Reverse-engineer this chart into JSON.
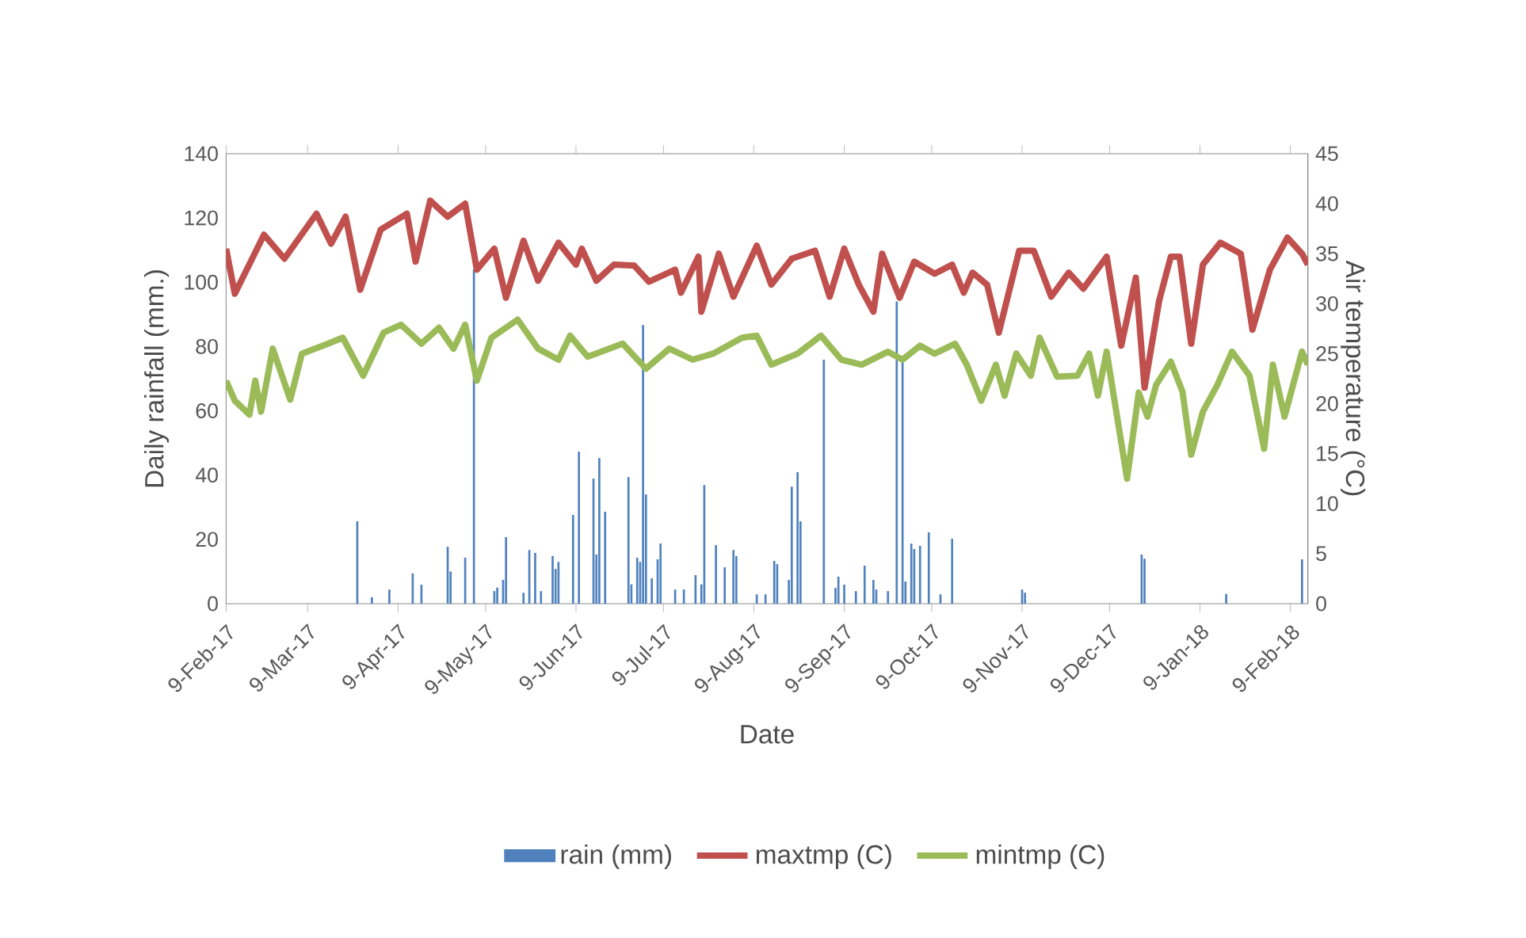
{
  "chart_data": {
    "type": "line",
    "xlabel": "Date",
    "ylabel": "Daily rainfall (mm.)",
    "y2label": "Air temperature (°C)",
    "xlim": [
      "2017-02-09",
      "2018-02-15"
    ],
    "xticks": [
      {
        "value": "2017-02-09",
        "label": "9-Feb-17"
      },
      {
        "value": "2017-03-09",
        "label": "9-Mar-17"
      },
      {
        "value": "2017-04-09",
        "label": "9-Apr-17"
      },
      {
        "value": "2017-05-09",
        "label": "9-May-17"
      },
      {
        "value": "2017-06-09",
        "label": "9-Jun-17"
      },
      {
        "value": "2017-07-09",
        "label": "9-Jul-17"
      },
      {
        "value": "2017-08-09",
        "label": "9-Aug-17"
      },
      {
        "value": "2017-09-09",
        "label": "9-Sep-17"
      },
      {
        "value": "2017-10-09",
        "label": "9-Oct-17"
      },
      {
        "value": "2017-11-09",
        "label": "9-Nov-17"
      },
      {
        "value": "2017-12-09",
        "label": "9-Dec-17"
      },
      {
        "value": "2018-01-09",
        "label": "9-Jan-18"
      },
      {
        "value": "2018-02-09",
        "label": "9-Feb-18"
      }
    ],
    "ylim": [
      0,
      140
    ],
    "yticks": [
      0,
      20,
      40,
      60,
      80,
      100,
      120,
      140
    ],
    "y2lim": [
      0,
      45
    ],
    "y2ticks": [
      0,
      5,
      10,
      15,
      20,
      25,
      30,
      35,
      40,
      45
    ],
    "legend": "bottom",
    "series": [
      {
        "name": "rain (mm)",
        "type": "bar",
        "axis": "y",
        "color": "#4f81bd",
        "x": [
          "2017-03-26",
          "2017-03-31",
          "2017-04-06",
          "2017-04-14",
          "2017-04-17",
          "2017-04-26",
          "2017-04-27",
          "2017-05-02",
          "2017-05-05",
          "2017-05-12",
          "2017-05-13",
          "2017-05-15",
          "2017-05-16",
          "2017-05-22",
          "2017-05-24",
          "2017-05-26",
          "2017-05-28",
          "2017-06-01",
          "2017-06-02",
          "2017-06-03",
          "2017-06-08",
          "2017-06-10",
          "2017-06-15",
          "2017-06-16",
          "2017-06-17",
          "2017-06-19",
          "2017-06-27",
          "2017-06-28",
          "2017-06-30",
          "2017-07-01",
          "2017-07-02",
          "2017-07-03",
          "2017-07-05",
          "2017-07-07",
          "2017-07-08",
          "2017-07-13",
          "2017-07-16",
          "2017-07-20",
          "2017-07-22",
          "2017-07-23",
          "2017-07-27",
          "2017-07-30",
          "2017-08-02",
          "2017-08-03",
          "2017-08-10",
          "2017-08-13",
          "2017-08-16",
          "2017-08-17",
          "2017-08-21",
          "2017-08-22",
          "2017-08-24",
          "2017-08-25",
          "2017-09-02",
          "2017-09-06",
          "2017-09-07",
          "2017-09-09",
          "2017-09-13",
          "2017-09-16",
          "2017-09-19",
          "2017-09-20",
          "2017-09-24",
          "2017-09-27",
          "2017-09-29",
          "2017-09-30",
          "2017-10-02",
          "2017-10-03",
          "2017-10-05",
          "2017-10-08",
          "2017-10-12",
          "2017-10-16",
          "2017-11-09",
          "2017-11-10",
          "2017-12-20",
          "2017-12-21",
          "2018-01-18",
          "2018-02-13"
        ],
        "values": [
          25.6,
          2,
          4.4,
          9.4,
          5.9,
          17.7,
          10,
          14.3,
          104,
          3.9,
          5,
          7.4,
          20.7,
          3.4,
          16.7,
          15.8,
          3.9,
          14.8,
          10.8,
          13,
          27.6,
          47.3,
          38.9,
          15.3,
          45.3,
          28.6,
          39.4,
          6,
          14.3,
          13,
          86.7,
          34,
          7.9,
          13.8,
          18.7,
          4.4,
          4.4,
          8.9,
          6,
          36.9,
          18.2,
          11.3,
          16.7,
          14.8,
          2.9,
          2.9,
          13.3,
          12.3,
          7.4,
          36.4,
          40.9,
          25.6,
          75.9,
          4.9,
          8.4,
          5.9,
          3.9,
          11.8,
          7.4,
          4.4,
          3.9,
          94,
          75.4,
          6.9,
          18.7,
          17,
          18,
          22.2,
          2.9,
          20.2,
          4.4,
          3.4,
          15.3,
          14,
          3,
          13.8
        ]
      },
      {
        "name": "maxtmp (C)",
        "axis": "y2",
        "color": "#c0504d",
        "x": [
          "2017-02-09",
          "2017-02-12",
          "2017-02-22",
          "2017-03-01",
          "2017-03-12",
          "2017-03-17",
          "2017-03-22",
          "2017-03-27",
          "2017-04-03",
          "2017-04-12",
          "2017-04-15",
          "2017-04-20",
          "2017-04-26",
          "2017-05-02",
          "2017-05-06",
          "2017-05-12",
          "2017-05-16",
          "2017-05-22",
          "2017-05-27",
          "2017-06-03",
          "2017-06-09",
          "2017-06-11",
          "2017-06-16",
          "2017-06-22",
          "2017-06-29",
          "2017-07-04",
          "2017-07-13",
          "2017-07-15",
          "2017-07-21",
          "2017-07-22",
          "2017-07-28",
          "2017-08-02",
          "2017-08-10",
          "2017-08-15",
          "2017-08-22",
          "2017-08-30",
          "2017-09-04",
          "2017-09-09",
          "2017-09-14",
          "2017-09-19",
          "2017-09-22",
          "2017-09-28",
          "2017-10-03",
          "2017-10-10",
          "2017-10-16",
          "2017-10-20",
          "2017-10-23",
          "2017-10-28",
          "2017-11-01",
          "2017-11-08",
          "2017-11-13",
          "2017-11-19",
          "2017-11-25",
          "2017-11-30",
          "2017-12-08",
          "2017-12-13",
          "2017-12-18",
          "2017-12-21",
          "2017-12-26",
          "2017-12-30",
          "2018-01-02",
          "2018-01-06",
          "2018-01-10",
          "2018-01-16",
          "2018-01-23",
          "2018-01-27",
          "2018-02-02",
          "2018-02-08",
          "2018-02-13",
          "2018-02-15"
        ],
        "values": [
          35.5,
          31,
          36.9,
          34.5,
          39,
          36,
          38.7,
          31.4,
          37.4,
          39,
          34.2,
          40.3,
          38.7,
          40,
          33.4,
          35.5,
          30.6,
          36.3,
          32.3,
          36.1,
          33.9,
          35.5,
          32.3,
          33.9,
          33.8,
          32.2,
          33.4,
          31.1,
          34.7,
          29.2,
          35,
          30.7,
          35.8,
          31.9,
          34.5,
          35.3,
          30.7,
          35.5,
          31.9,
          29.2,
          35,
          30.6,
          34.2,
          33,
          33.9,
          31.1,
          33.1,
          31.9,
          27.1,
          35.3,
          35.3,
          30.7,
          33.1,
          31.5,
          34.7,
          25.8,
          32.6,
          21.6,
          30.3,
          34.7,
          34.7,
          26,
          33.9,
          36.1,
          35,
          27.4,
          33.4,
          36.6,
          35,
          33.9
        ]
      },
      {
        "name": "mintmp (C)",
        "axis": "y2",
        "color": "#9bbb59",
        "x": [
          "2017-02-09",
          "2017-02-12",
          "2017-02-17",
          "2017-02-19",
          "2017-02-21",
          "2017-02-25",
          "2017-03-03",
          "2017-03-07",
          "2017-03-16",
          "2017-03-21",
          "2017-03-28",
          "2017-04-04",
          "2017-04-10",
          "2017-04-17",
          "2017-04-23",
          "2017-04-28",
          "2017-05-02",
          "2017-05-06",
          "2017-05-11",
          "2017-05-20",
          "2017-05-27",
          "2017-06-03",
          "2017-06-07",
          "2017-06-13",
          "2017-06-25",
          "2017-07-03",
          "2017-07-11",
          "2017-07-19",
          "2017-07-26",
          "2017-08-05",
          "2017-08-10",
          "2017-08-15",
          "2017-08-24",
          "2017-09-01",
          "2017-09-08",
          "2017-09-15",
          "2017-09-24",
          "2017-09-29",
          "2017-10-05",
          "2017-10-10",
          "2017-10-17",
          "2017-10-21",
          "2017-10-26",
          "2017-10-31",
          "2017-11-03",
          "2017-11-07",
          "2017-11-12",
          "2017-11-15",
          "2017-11-21",
          "2017-11-28",
          "2017-12-02",
          "2017-12-05",
          "2017-12-08",
          "2017-12-15",
          "2017-12-19",
          "2017-12-22",
          "2017-12-25",
          "2017-12-30",
          "2018-01-03",
          "2018-01-06",
          "2018-01-10",
          "2018-01-15",
          "2018-01-20",
          "2018-01-26",
          "2018-01-31",
          "2018-02-03",
          "2018-02-07",
          "2018-02-13",
          "2018-02-15"
        ],
        "values": [
          22.3,
          20.3,
          18.9,
          22.3,
          19.2,
          25.5,
          20.4,
          25,
          26,
          26.6,
          22.8,
          27.1,
          27.9,
          26,
          27.6,
          25.5,
          27.9,
          22.3,
          26.6,
          28.4,
          25.5,
          24.4,
          26.8,
          24.7,
          26,
          23.5,
          25.5,
          24.4,
          25,
          26.6,
          26.8,
          23.9,
          25,
          26.8,
          24.4,
          23.9,
          25.2,
          24.4,
          25.8,
          25,
          26,
          23.9,
          20.3,
          23.9,
          20.8,
          25,
          22.8,
          26.6,
          22.7,
          22.8,
          25,
          20.8,
          25.2,
          12.5,
          21.1,
          18.7,
          21.9,
          24.2,
          21.2,
          14.9,
          19.2,
          21.9,
          25.2,
          22.8,
          15.5,
          23.9,
          18.7,
          25.2,
          23.9
        ]
      }
    ]
  }
}
